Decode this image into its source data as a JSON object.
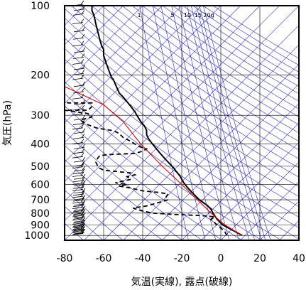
{
  "chart_data": {
    "type": "line",
    "xlabel": "気温(実線), 露点(破線)",
    "ylabel": "気圧(hPa)",
    "xlim": [
      -80,
      40
    ],
    "ylim": [
      1050,
      100
    ],
    "y_scale": "log",
    "grid": true,
    "x_ticks": [
      -80,
      -60,
      -40,
      -20,
      0,
      20,
      40
    ],
    "x_tick_labels": [
      "-80",
      "-60",
      "-40",
      "-20",
      "0",
      "20",
      "40"
    ],
    "y_ticks": [
      100,
      200,
      300,
      400,
      500,
      600,
      700,
      800,
      900,
      1000
    ],
    "y_tick_labels": [
      "100",
      "200",
      "300",
      "400",
      "500",
      "600",
      "700",
      "800",
      "900",
      "1000"
    ],
    "mixing_ratio_labels": [
      {
        "text": "1",
        "value": 1
      },
      {
        "text": "5",
        "value": 5
      },
      {
        "text": "10",
        "value": 10
      },
      {
        "text": "15",
        "value": 15
      },
      {
        "text": "20g",
        "value": 20
      }
    ],
    "colors": {
      "temperature": "#000000",
      "dewpoint": "#000000",
      "guide_lines": "#2626cc",
      "parcel": "#dd0000",
      "grid": "#000000"
    },
    "series": [
      {
        "style": "solid",
        "points": [
          [
            11,
            1000
          ],
          [
            7,
            960
          ],
          [
            1,
            900
          ],
          [
            -2,
            850
          ],
          [
            -4,
            800
          ],
          [
            -5,
            770
          ],
          [
            -7,
            740
          ],
          [
            -9,
            720
          ],
          [
            -11,
            700
          ],
          [
            -14,
            660
          ],
          [
            -17,
            620
          ],
          [
            -19,
            590
          ],
          [
            -20,
            570
          ],
          [
            -21,
            550
          ],
          [
            -23,
            525
          ],
          [
            -24,
            510
          ],
          [
            -25,
            500
          ],
          [
            -27,
            480
          ],
          [
            -29,
            460
          ],
          [
            -31,
            440
          ],
          [
            -33,
            420
          ],
          [
            -35,
            400
          ],
          [
            -37,
            380
          ],
          [
            -38,
            365
          ],
          [
            -38,
            350
          ],
          [
            -39,
            335
          ],
          [
            -41,
            320
          ],
          [
            -43,
            300
          ],
          [
            -44,
            290
          ],
          [
            -46,
            275
          ],
          [
            -48,
            262
          ],
          [
            -50,
            250
          ],
          [
            -52,
            240
          ],
          [
            -53,
            230
          ],
          [
            -54,
            220
          ],
          [
            -55,
            210
          ],
          [
            -56,
            205
          ],
          [
            -57,
            195
          ],
          [
            -58,
            185
          ],
          [
            -59,
            175
          ],
          [
            -60,
            165
          ],
          [
            -60,
            155
          ],
          [
            -61,
            150
          ],
          [
            -62,
            140
          ],
          [
            -63,
            130
          ],
          [
            -64,
            120
          ],
          [
            -65,
            110
          ],
          [
            -66,
            105
          ],
          [
            -66,
            100
          ]
        ]
      },
      {
        "style": "dashed",
        "points": [
          [
            3,
            1000
          ],
          [
            2,
            960
          ],
          [
            -2,
            900
          ],
          [
            -5,
            850
          ],
          [
            -3,
            830
          ],
          [
            -10,
            820
          ],
          [
            -25,
            810
          ],
          [
            -35,
            800
          ],
          [
            -41,
            780
          ],
          [
            -45,
            760
          ],
          [
            -38,
            745
          ],
          [
            -32,
            720
          ],
          [
            -27,
            700
          ],
          [
            -28,
            680
          ],
          [
            -27,
            660
          ],
          [
            -32,
            650
          ],
          [
            -40,
            640
          ],
          [
            -47,
            620
          ],
          [
            -52,
            610
          ],
          [
            -48,
            600
          ],
          [
            -54,
            590
          ],
          [
            -50,
            580
          ],
          [
            -46,
            570
          ],
          [
            -48,
            555
          ],
          [
            -44,
            545
          ],
          [
            -46,
            535
          ],
          [
            -60,
            520
          ],
          [
            -62,
            510
          ],
          [
            -63,
            500
          ],
          [
            -64,
            480
          ],
          [
            -63,
            460
          ],
          [
            -62,
            450
          ],
          [
            -58,
            445
          ],
          [
            -44,
            440
          ],
          [
            -40,
            430
          ],
          [
            -38,
            420
          ],
          [
            -42,
            410
          ],
          [
            -44,
            400
          ],
          [
            -46,
            390
          ],
          [
            -50,
            375
          ],
          [
            -52,
            360
          ],
          [
            -55,
            350
          ],
          [
            -60,
            345
          ],
          [
            -64,
            340
          ],
          [
            -68,
            330
          ],
          [
            -72,
            315
          ],
          [
            -66,
            305
          ],
          [
            -68,
            295
          ],
          [
            -74,
            290
          ],
          [
            -80,
            285
          ],
          [
            -68,
            285
          ],
          [
            -66,
            275
          ],
          [
            -66,
            265
          ],
          [
            -78,
            265
          ],
          [
            -80,
            262
          ]
        ]
      },
      {
        "style": "parcel",
        "points": [
          [
            11,
            1000
          ],
          [
            2,
            900
          ],
          [
            -5,
            800
          ],
          [
            -12,
            700
          ],
          [
            -20,
            600
          ],
          [
            -30,
            500
          ],
          [
            -41,
            400
          ],
          [
            -50,
            320
          ],
          [
            -60,
            270
          ],
          [
            -80,
            225
          ]
        ]
      }
    ],
    "wind_barb_levels": [
      995,
      990,
      985,
      975,
      965,
      955,
      950,
      940,
      930,
      925,
      915,
      905,
      895,
      885,
      875,
      860,
      850,
      840,
      830,
      820,
      810,
      800,
      790,
      780,
      765,
      750,
      740,
      725,
      710,
      700,
      685,
      670,
      655,
      640,
      625,
      610,
      600,
      585,
      570,
      555,
      540,
      525,
      510,
      500,
      480,
      460,
      440,
      420,
      400,
      380,
      360,
      345,
      330,
      315,
      300,
      285,
      270,
      255,
      240,
      225,
      210,
      200,
      190,
      180,
      170,
      160,
      150,
      140,
      130,
      120,
      110,
      105,
      100
    ]
  }
}
